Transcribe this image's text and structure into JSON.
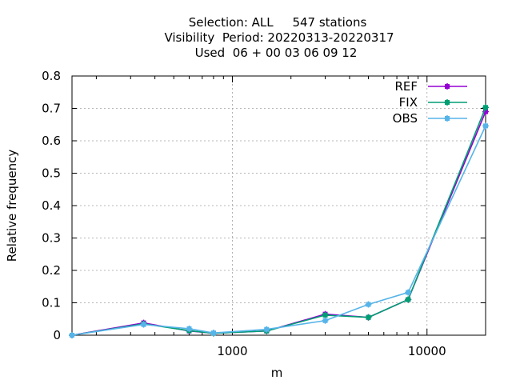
{
  "chart_data": {
    "type": "line",
    "title_lines": [
      "Selection: ALL     547 stations",
      "Visibility  Period: 20220313-20220317",
      "Used  06 + 00 03 06 09 12"
    ],
    "xlabel": "m",
    "ylabel": "Relative frequency",
    "x_scale": "log",
    "xlim": [
      150,
      20000
    ],
    "ylim": [
      0,
      0.8
    ],
    "x_ticks": [
      1000,
      10000
    ],
    "x_tick_labels": [
      "1000",
      "10000"
    ],
    "y_ticks": [
      0,
      0.1,
      0.2,
      0.3,
      0.4,
      0.5,
      0.6,
      0.7,
      0.8
    ],
    "y_tick_labels": [
      "0",
      "0.1",
      "0.2",
      "0.3",
      "0.4",
      "0.5",
      "0.6",
      "0.7",
      "0.8"
    ],
    "grid": true,
    "legend_position": "top-right",
    "x": [
      150,
      350,
      600,
      800,
      1500,
      3000,
      5000,
      8000,
      20000
    ],
    "series": [
      {
        "name": "REF",
        "color": "#9400d3",
        "values": [
          0.0,
          0.038,
          0.013,
          0.006,
          0.013,
          0.065,
          0.055,
          0.11,
          0.69
        ]
      },
      {
        "name": "FIX",
        "color": "#009e73",
        "values": [
          0.0,
          0.035,
          0.014,
          0.006,
          0.013,
          0.062,
          0.055,
          0.11,
          0.703
        ]
      },
      {
        "name": "OBS",
        "color": "#56b4e9",
        "values": [
          0.0,
          0.033,
          0.02,
          0.007,
          0.018,
          0.045,
          0.095,
          0.132,
          0.646
        ]
      }
    ]
  }
}
